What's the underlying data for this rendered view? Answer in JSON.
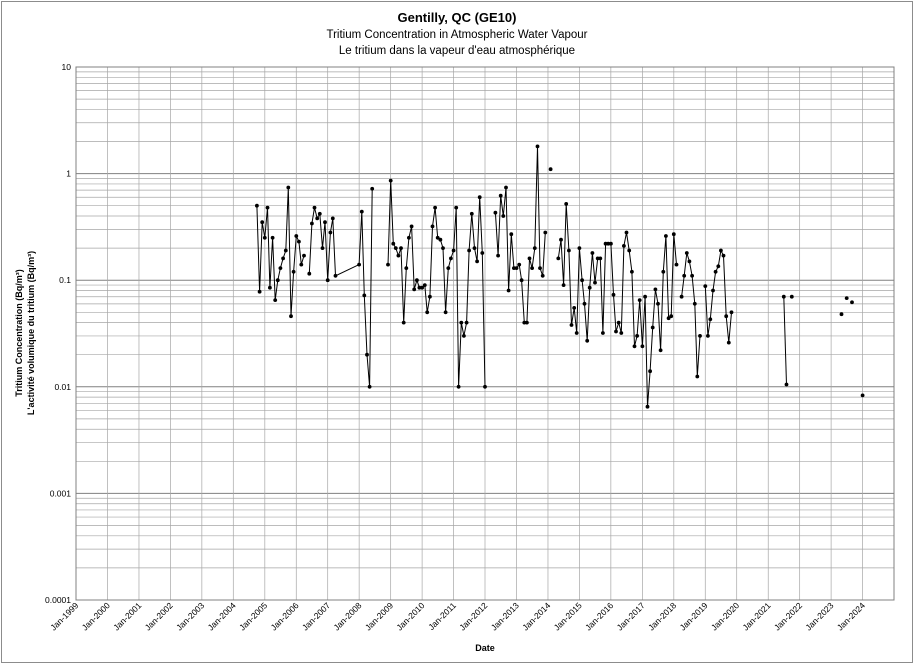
{
  "chart_data": {
    "type": "line",
    "title": "Gentilly, QC (GE10)",
    "subtitle": "Tritium Concentration in Atmospheric Water Vapour",
    "subtitle_fr": "Le tritium dans la vapeur d'eau atmosphérique",
    "xlabel": "Date",
    "ylabel": "Tritium Concentration (Bq/m³)",
    "ylabel_fr": "L'activité volumique du tritium (Bq/m³)",
    "y_scale": "log",
    "ylim": [
      0.0001,
      10
    ],
    "y_ticks": [
      "0.0001",
      "0.001",
      "0.01",
      "0.1",
      "1",
      "10"
    ],
    "xlim": [
      "1999-01-01",
      "2024-12-31"
    ],
    "x_ticks": [
      "Jan-1999",
      "Jan-2000",
      "Jan-2001",
      "Jan-2002",
      "Jan-2003",
      "Jan-2004",
      "Jan-2005",
      "Jan-2006",
      "Jan-2007",
      "Jan-2008",
      "Jan-2009",
      "Jan-2010",
      "Jan-2011",
      "Jan-2012",
      "Jan-2013",
      "Jan-2014",
      "Jan-2015",
      "Jan-2016",
      "Jan-2017",
      "Jan-2018",
      "Jan-2019",
      "Jan-2020",
      "Jan-2021",
      "Jan-2022",
      "Jan-2023",
      "Jan-2024"
    ],
    "grid": true,
    "legend": "none",
    "colors": {
      "line": "#000000",
      "marker": "#000000",
      "grid": "#a6a6a6",
      "axis": "#808080"
    },
    "series": [
      {
        "points": [
          [
            "2004-10-01",
            0.5
          ],
          [
            "2004-11-01",
            0.078
          ],
          [
            "2004-12-01",
            0.35
          ],
          [
            "2005-01-01",
            0.25
          ],
          [
            "2005-02-01",
            0.48
          ],
          [
            "2005-03-01",
            0.085
          ],
          [
            "2005-04-01",
            0.25
          ],
          [
            "2005-05-01",
            0.065
          ],
          [
            "2005-06-01",
            0.1
          ],
          [
            "2005-07-01",
            0.13
          ],
          [
            "2005-08-01",
            0.16
          ],
          [
            "2005-09-01",
            0.19
          ],
          [
            "2005-10-01",
            0.74
          ],
          [
            "2005-11-01",
            0.046
          ],
          [
            "2005-12-01",
            0.12
          ],
          [
            "2006-01-01",
            0.26
          ],
          [
            "2006-02-01",
            0.23
          ],
          [
            "2006-03-01",
            0.14
          ],
          [
            "2006-04-01",
            0.17
          ],
          [
            "2006-06-01",
            0.115
          ],
          [
            "2006-07-01",
            0.34
          ],
          [
            "2006-08-01",
            0.48
          ],
          [
            "2006-09-01",
            0.38
          ],
          [
            "2006-10-01",
            0.42
          ],
          [
            "2006-11-01",
            0.2
          ],
          [
            "2006-12-01",
            0.35
          ],
          [
            "2007-01-01",
            0.1
          ],
          [
            "2007-02-01",
            0.28
          ],
          [
            "2007-03-01",
            0.38
          ],
          [
            "2007-04-01",
            0.11
          ],
          [
            "2008-01-01",
            0.14
          ],
          [
            "2008-02-01",
            0.44
          ],
          [
            "2008-03-01",
            0.072
          ],
          [
            "2008-04-01",
            0.02
          ],
          [
            "2008-05-01",
            0.01
          ],
          [
            "2008-06-01",
            0.72
          ],
          [
            "2008-12-01",
            0.14
          ],
          [
            "2009-01-01",
            0.86
          ],
          [
            "2009-02-01",
            0.22
          ],
          [
            "2009-03-01",
            0.2
          ],
          [
            "2009-04-01",
            0.17
          ],
          [
            "2009-05-01",
            0.2
          ],
          [
            "2009-06-01",
            0.04
          ],
          [
            "2009-07-01",
            0.13
          ],
          [
            "2009-08-01",
            0.25
          ],
          [
            "2009-09-01",
            0.32
          ],
          [
            "2009-10-01",
            0.082
          ],
          [
            "2009-11-01",
            0.1
          ],
          [
            "2009-12-01",
            0.085
          ],
          [
            "2010-01-01",
            0.085
          ],
          [
            "2010-02-01",
            0.09
          ],
          [
            "2010-03-01",
            0.05
          ],
          [
            "2010-04-01",
            0.07
          ],
          [
            "2010-05-01",
            0.32
          ],
          [
            "2010-06-01",
            0.48
          ],
          [
            "2010-07-01",
            0.25
          ],
          [
            "2010-08-01",
            0.24
          ],
          [
            "2010-09-01",
            0.2
          ],
          [
            "2010-10-01",
            0.05
          ],
          [
            "2010-11-01",
            0.13
          ],
          [
            "2010-12-01",
            0.16
          ],
          [
            "2011-01-01",
            0.19
          ],
          [
            "2011-02-01",
            0.48
          ],
          [
            "2011-03-01",
            0.01
          ],
          [
            "2011-04-01",
            0.04
          ],
          [
            "2011-05-01",
            0.03
          ],
          [
            "2011-06-01",
            0.04
          ],
          [
            "2011-07-01",
            0.19
          ],
          [
            "2011-08-01",
            0.42
          ],
          [
            "2011-09-01",
            0.2
          ],
          [
            "2011-10-01",
            0.15
          ],
          [
            "2011-11-01",
            0.6
          ],
          [
            "2011-12-01",
            0.18
          ],
          [
            "2012-01-01",
            0.01
          ],
          [
            "2012-05-01",
            0.43
          ],
          [
            "2012-06-01",
            0.17
          ],
          [
            "2012-07-01",
            0.62
          ],
          [
            "2012-08-01",
            0.4
          ],
          [
            "2012-09-01",
            0.74
          ],
          [
            "2012-10-01",
            0.08
          ],
          [
            "2012-11-01",
            0.27
          ],
          [
            "2012-12-01",
            0.13
          ],
          [
            "2013-01-01",
            0.13
          ],
          [
            "2013-02-01",
            0.14
          ],
          [
            "2013-03-01",
            0.1
          ],
          [
            "2013-04-01",
            0.04
          ],
          [
            "2013-05-01",
            0.04
          ],
          [
            "2013-06-01",
            0.16
          ],
          [
            "2013-07-01",
            0.13
          ],
          [
            "2013-08-01",
            0.2
          ],
          [
            "2013-09-01",
            1.8
          ],
          [
            "2013-10-01",
            0.13
          ],
          [
            "2013-11-01",
            0.11
          ],
          [
            "2013-12-01",
            0.28
          ],
          [
            "2014-02-01",
            1.1
          ],
          [
            "2014-05-01",
            0.16
          ],
          [
            "2014-06-01",
            0.24
          ],
          [
            "2014-07-01",
            0.09
          ],
          [
            "2014-08-01",
            0.52
          ],
          [
            "2014-09-01",
            0.19
          ],
          [
            "2014-10-01",
            0.038
          ],
          [
            "2014-11-01",
            0.055
          ],
          [
            "2014-12-01",
            0.032
          ],
          [
            "2015-01-01",
            0.2
          ],
          [
            "2015-02-01",
            0.1
          ],
          [
            "2015-03-01",
            0.06
          ],
          [
            "2015-04-01",
            0.027
          ],
          [
            "2015-05-01",
            0.085
          ],
          [
            "2015-06-01",
            0.18
          ],
          [
            "2015-07-01",
            0.095
          ],
          [
            "2015-08-01",
            0.16
          ],
          [
            "2015-09-01",
            0.16
          ],
          [
            "2015-10-01",
            0.032
          ],
          [
            "2015-11-01",
            0.22
          ],
          [
            "2015-12-01",
            0.22
          ],
          [
            "2016-01-01",
            0.22
          ],
          [
            "2016-02-01",
            0.073
          ],
          [
            "2016-03-01",
            0.033
          ],
          [
            "2016-04-01",
            0.04
          ],
          [
            "2016-05-01",
            0.032
          ],
          [
            "2016-06-01",
            0.21
          ],
          [
            "2016-07-01",
            0.28
          ],
          [
            "2016-08-01",
            0.19
          ],
          [
            "2016-09-01",
            0.12
          ],
          [
            "2016-10-01",
            0.024
          ],
          [
            "2016-11-01",
            0.03
          ],
          [
            "2016-12-01",
            0.065
          ],
          [
            "2017-01-01",
            0.024
          ],
          [
            "2017-02-01",
            0.07
          ],
          [
            "2017-03-01",
            0.0065
          ],
          [
            "2017-04-01",
            0.014
          ],
          [
            "2017-05-01",
            0.036
          ],
          [
            "2017-06-01",
            0.082
          ],
          [
            "2017-07-01",
            0.06
          ],
          [
            "2017-08-01",
            0.022
          ],
          [
            "2017-09-01",
            0.12
          ],
          [
            "2017-10-01",
            0.26
          ],
          [
            "2017-11-01",
            0.044
          ],
          [
            "2017-12-01",
            0.046
          ],
          [
            "2018-01-01",
            0.27
          ],
          [
            "2018-02-01",
            0.14
          ],
          [
            "2018-04-01",
            0.07
          ],
          [
            "2018-05-01",
            0.11
          ],
          [
            "2018-06-01",
            0.18
          ],
          [
            "2018-07-01",
            0.15
          ],
          [
            "2018-08-01",
            0.11
          ],
          [
            "2018-09-01",
            0.06
          ],
          [
            "2018-10-01",
            0.0125
          ],
          [
            "2018-11-01",
            0.03
          ],
          [
            "2019-01-01",
            0.088
          ],
          [
            "2019-02-01",
            0.03
          ],
          [
            "2019-03-01",
            0.043
          ],
          [
            "2019-04-01",
            0.08
          ],
          [
            "2019-05-01",
            0.12
          ],
          [
            "2019-06-01",
            0.135
          ],
          [
            "2019-07-01",
            0.19
          ],
          [
            "2019-08-01",
            0.17
          ],
          [
            "2019-09-01",
            0.046
          ],
          [
            "2019-10-01",
            0.026
          ],
          [
            "2019-11-01",
            0.05
          ],
          [
            "2021-07-01",
            0.07
          ],
          [
            "2021-08-01",
            0.0105
          ],
          [
            "2021-10-01",
            0.07
          ],
          [
            "2023-05-01",
            0.048
          ],
          [
            "2023-07-01",
            0.068
          ],
          [
            "2023-09-01",
            0.062
          ],
          [
            "2024-01-01",
            0.0083
          ]
        ],
        "segments_break_after": [
          "2006-04-01",
          "2008-06-01",
          "2012-01-01",
          "2013-12-01",
          "2014-02-01",
          "2018-02-01",
          "2018-11-01",
          "2019-11-01",
          "2021-08-01",
          "2021-10-01",
          "2023-05-01",
          "2023-07-01",
          "2023-09-01"
        ]
      }
    ]
  }
}
